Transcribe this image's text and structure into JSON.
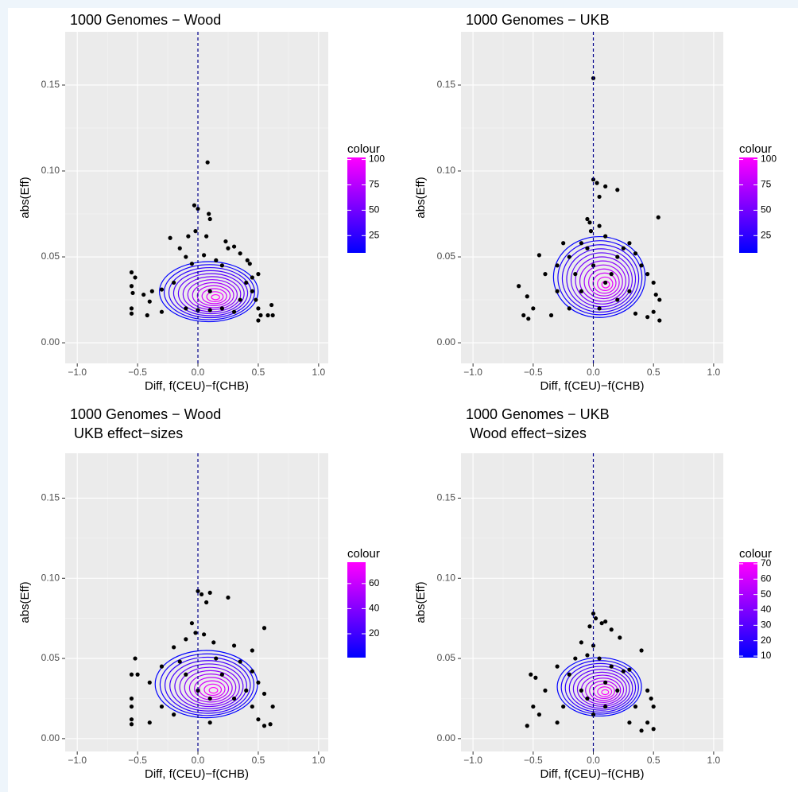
{
  "chart_data": [
    {
      "type": "scatter",
      "title": "1000 Genomes − Wood",
      "x_label": "Diff, f(CEU)−f(CHB)",
      "y_label": "abs(Eff)",
      "xlim": [
        -1.1,
        1.08
      ],
      "ylim": [
        -0.012,
        0.181
      ],
      "xticks": [
        {
          "value": -1,
          "label": "−1.0"
        },
        {
          "value": -0.5,
          "label": "−0.5"
        },
        {
          "value": 0,
          "label": "0.0"
        },
        {
          "value": 0.5,
          "label": "0.5"
        },
        {
          "value": 1,
          "label": "1.0"
        }
      ],
      "yticks": [
        {
          "value": 0,
          "label": "0.00"
        },
        0.05,
        {
          "value": 0.1,
          "label": "0.10"
        },
        0.15
      ],
      "grid": true,
      "vline": 0,
      "vline_color": "#00008b",
      "color": "#000000",
      "legend_title": "colour",
      "colour_low": "#0000ff",
      "colour_high": "#ff00ff",
      "colour_lim": [
        8,
        102
      ],
      "colour_ticks": [
        25,
        50,
        75,
        100
      ],
      "x": [
        0.08,
        -0.03,
        0,
        0.09,
        0.1,
        -0.23,
        0.23,
        0.25,
        -0.08,
        -0.02,
        0.07,
        0.3,
        0.35,
        0.41,
        0.43,
        -0.15,
        -0.1,
        -0.05,
        0.05,
        0.15,
        0.2,
        -0.55,
        -0.52,
        -0.55,
        -0.54,
        -0.55,
        -0.55,
        -0.45,
        -0.38,
        -0.3,
        -0.4,
        -0.42,
        0.45,
        0.48,
        0.5,
        0.52,
        0.58,
        0.61,
        0.62,
        0.5,
        0.4,
        0.35,
        -0.2,
        0.1,
        0.2,
        0,
        -0.1,
        0.1,
        0.3,
        -0.3,
        0.5,
        0.45
      ],
      "values": [
        0.105,
        0.08,
        0.078,
        0.075,
        0.072,
        0.061,
        0.059,
        0.055,
        0.062,
        0.065,
        0.062,
        0.056,
        0.052,
        0.048,
        0.046,
        0.055,
        0.05,
        0.046,
        0.051,
        0.048,
        0.045,
        0.041,
        0.038,
        0.033,
        0.029,
        0.02,
        0.017,
        0.028,
        0.03,
        0.031,
        0.024,
        0.016,
        0.03,
        0.025,
        0.02,
        0.016,
        0.016,
        0.022,
        0.016,
        0.013,
        0.035,
        0.025,
        0.035,
        0.03,
        0.02,
        0.019,
        0.02,
        0.019,
        0.018,
        0.018,
        0.04,
        0.038
      ]
    },
    {
      "type": "scatter",
      "title": "1000 Genomes − UKB",
      "x_label": "Diff, f(CEU)−f(CHB)",
      "y_label": "abs(Eff)",
      "xlim": [
        -1.1,
        1.08
      ],
      "ylim": [
        -0.012,
        0.181
      ],
      "xticks": [
        {
          "value": -1,
          "label": "−1.0"
        },
        {
          "value": -0.5,
          "label": "−0.5"
        },
        {
          "value": 0,
          "label": "0.0"
        },
        {
          "value": 0.5,
          "label": "0.5"
        },
        {
          "value": 1,
          "label": "1.0"
        }
      ],
      "yticks": [
        {
          "value": 0,
          "label": "0.00"
        },
        0.05,
        {
          "value": 0.1,
          "label": "0.10"
        },
        0.15
      ],
      "grid": true,
      "vline": 0,
      "vline_color": "#00008b",
      "color": "#000000",
      "legend_title": "colour",
      "colour_low": "#0000ff",
      "colour_high": "#ff00ff",
      "colour_lim": [
        8,
        102
      ],
      "colour_ticks": [
        25,
        50,
        75,
        100
      ],
      "x": [
        0,
        0,
        0.03,
        0.1,
        0.05,
        0.2,
        0.54,
        -0.05,
        -0.03,
        0.05,
        -0.02,
        0.1,
        -0.1,
        -0.25,
        0.3,
        -0.45,
        -0.62,
        -0.55,
        -0.5,
        -0.58,
        -0.54,
        -0.4,
        -0.3,
        -0.2,
        0.2,
        0.35,
        0.4,
        0.45,
        0.5,
        0.52,
        0.55,
        0.5,
        0.55,
        0.45,
        0.3,
        -0.3,
        -0.15,
        0.15,
        0,
        0.1,
        -0.1,
        0.2,
        -0.2,
        0.05,
        -0.35,
        0.35,
        0.25,
        -0.05
      ],
      "values": [
        0.154,
        0.095,
        0.093,
        0.091,
        0.085,
        0.089,
        0.073,
        0.072,
        0.07,
        0.068,
        0.065,
        0.062,
        0.058,
        0.058,
        0.058,
        0.051,
        0.033,
        0.027,
        0.02,
        0.016,
        0.014,
        0.04,
        0.045,
        0.05,
        0.05,
        0.052,
        0.045,
        0.04,
        0.035,
        0.028,
        0.025,
        0.018,
        0.013,
        0.015,
        0.03,
        0.03,
        0.04,
        0.04,
        0.045,
        0.035,
        0.03,
        0.025,
        0.02,
        0.02,
        0.016,
        0.017,
        0.055,
        0.055
      ]
    },
    {
      "type": "scatter",
      "title": "1000 Genomes − Wood",
      "subtitle": "UKB effect−sizes",
      "x_label": "Diff, f(CEU)−f(CHB)",
      "y_label": "abs(Eff)",
      "xlim": [
        -1.1,
        1.08
      ],
      "ylim": [
        -0.008,
        0.178
      ],
      "xticks": [
        {
          "value": -1,
          "label": "−1.0"
        },
        {
          "value": -0.5,
          "label": "−0.5"
        },
        {
          "value": 0,
          "label": "0.0"
        },
        {
          "value": 0.5,
          "label": "0.5"
        },
        {
          "value": 1,
          "label": "1.0"
        }
      ],
      "yticks": [
        {
          "value": 0,
          "label": "0.00"
        },
        0.05,
        {
          "value": 0.1,
          "label": "0.10"
        },
        0.15
      ],
      "grid": true,
      "vline": 0,
      "vline_color": "#00008b",
      "color": "#000000",
      "legend_title": "colour",
      "colour_low": "#0000ff",
      "colour_high": "#ff00ff",
      "colour_lim": [
        1,
        77
      ],
      "colour_ticks": [
        20,
        40,
        60
      ],
      "x": [
        0,
        0.03,
        0.1,
        0.07,
        0.25,
        -0.05,
        0.55,
        -0.02,
        0.05,
        -0.1,
        0.13,
        0.3,
        -0.2,
        0.45,
        -0.52,
        -0.55,
        -0.5,
        -0.55,
        -0.55,
        -0.55,
        -0.55,
        -0.4,
        -0.3,
        -0.15,
        0.15,
        0.35,
        0.45,
        0.5,
        0.55,
        0.62,
        0.6,
        0.55,
        0.5,
        0.4,
        0.3,
        -0.3,
        -0.2,
        0.1,
        0,
        0.2,
        -0.1,
        0.1,
        -0.4,
        0.45
      ],
      "values": [
        0.092,
        0.09,
        0.091,
        0.085,
        0.088,
        0.072,
        0.069,
        0.066,
        0.065,
        0.062,
        0.06,
        0.058,
        0.057,
        0.055,
        0.05,
        0.04,
        0.04,
        0.025,
        0.02,
        0.012,
        0.009,
        0.035,
        0.045,
        0.048,
        0.05,
        0.048,
        0.042,
        0.035,
        0.028,
        0.02,
        0.009,
        0.008,
        0.012,
        0.03,
        0.025,
        0.02,
        0.015,
        0.01,
        0.03,
        0.04,
        0.04,
        0.025,
        0.01,
        0.02
      ]
    },
    {
      "type": "scatter",
      "title": "1000 Genomes − UKB",
      "subtitle": "Wood effect−sizes",
      "x_label": "Diff, f(CEU)−f(CHB)",
      "y_label": "abs(Eff)",
      "xlim": [
        -1.1,
        1.08
      ],
      "ylim": [
        -0.008,
        0.178
      ],
      "xticks": [
        {
          "value": -1,
          "label": "−1.0"
        },
        {
          "value": -0.5,
          "label": "−0.5"
        },
        {
          "value": 0,
          "label": "0.0"
        },
        {
          "value": 0.5,
          "label": "0.5"
        },
        {
          "value": 1,
          "label": "1.0"
        }
      ],
      "yticks": [
        {
          "value": 0,
          "label": "0.00"
        },
        0.05,
        {
          "value": 0.1,
          "label": "0.10"
        },
        0.15
      ],
      "grid": true,
      "vline": 0,
      "vline_color": "#00008b",
      "color": "#000000",
      "legend_title": "colour",
      "colour_low": "#0000ff",
      "colour_high": "#ff00ff",
      "colour_lim": [
        9,
        71
      ],
      "colour_ticks": [
        10,
        20,
        30,
        40,
        50,
        60,
        70
      ],
      "x": [
        0,
        0.02,
        0.07,
        0.1,
        0.15,
        -0.03,
        -0.1,
        0.22,
        0.4,
        -0.15,
        0,
        -0.05,
        0.05,
        0.15,
        0.25,
        0.3,
        -0.3,
        -0.2,
        -0.52,
        -0.48,
        -0.55,
        -0.5,
        -0.45,
        -0.4,
        0.45,
        0.48,
        0.5,
        0.45,
        0.5,
        0.4,
        0.35,
        0.2,
        -0.1,
        0.1,
        0,
        -0.25,
        -0.3,
        0.3,
        0.1,
        -0.05
      ],
      "values": [
        0.078,
        0.075,
        0.072,
        0.073,
        0.068,
        0.07,
        0.06,
        0.063,
        0.055,
        0.05,
        0.058,
        0.052,
        0.05,
        0.045,
        0.042,
        0.043,
        0.045,
        0.04,
        0.04,
        0.038,
        0.008,
        0.02,
        0.015,
        0.03,
        0.03,
        0.025,
        0.02,
        0.01,
        0.006,
        0.005,
        0.02,
        0.03,
        0.03,
        0.02,
        0.015,
        0.02,
        0.01,
        0.01,
        0.035,
        0.025
      ]
    }
  ]
}
